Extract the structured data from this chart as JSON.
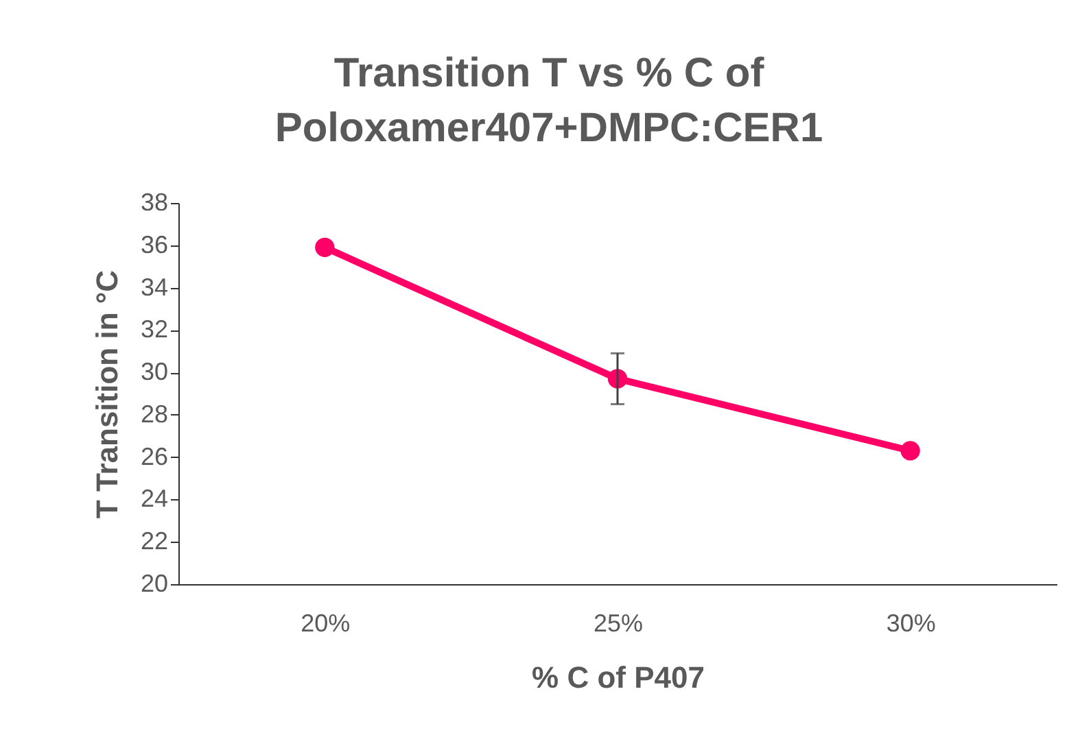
{
  "chart_data": {
    "type": "line",
    "title": [
      "Transition T vs % C of",
      "Poloxamer407+DMPC:CER1"
    ],
    "xlabel": "% C of P407",
    "ylabel": "T Transition in °C",
    "categories": [
      "20%",
      "25%",
      "30%"
    ],
    "series": [
      {
        "color": "#ff0066",
        "values": [
          35.9,
          29.7,
          26.3
        ],
        "errors": [
          null,
          1.2,
          null
        ]
      }
    ],
    "ylim": [
      20,
      38
    ],
    "yticks": [
      20,
      22,
      24,
      26,
      28,
      30,
      32,
      34,
      36,
      38
    ],
    "grid": false,
    "legend": false,
    "marker": "circle",
    "line_style": "solid"
  }
}
